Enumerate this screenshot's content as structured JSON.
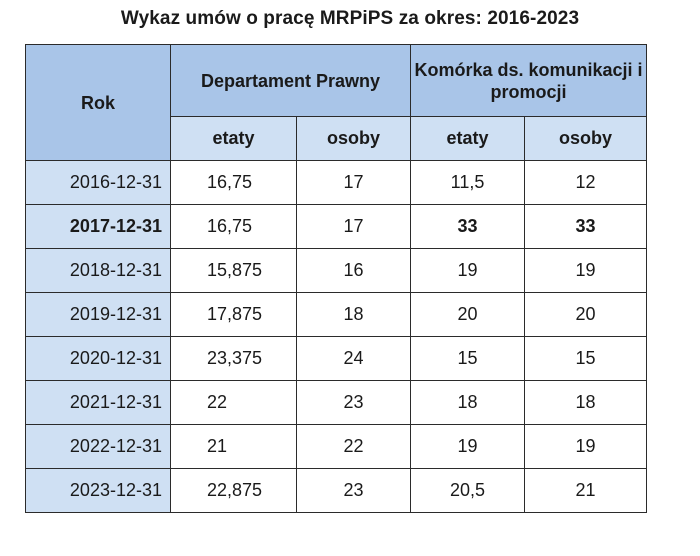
{
  "title": "Wykaz umów o pracę MRPiPS za okres: 2016-2023",
  "headers": {
    "year": "Rok",
    "group1": "Departament Prawny",
    "group2": "Komórka ds. komunikacji i promocji",
    "sub": [
      "etaty",
      "osoby",
      "etaty",
      "osoby"
    ]
  },
  "rows": [
    {
      "year": "2016-12-31",
      "dp_etaty": "16,75",
      "dp_osoby": "17",
      "kk_etaty": "11,5",
      "kk_osoby": "12"
    },
    {
      "year": "2017-12-31",
      "dp_etaty": "16,75",
      "dp_osoby": "17",
      "kk_etaty": "33",
      "kk_osoby": "33"
    },
    {
      "year": "2018-12-31",
      "dp_etaty": "15,875",
      "dp_osoby": "16",
      "kk_etaty": "19",
      "kk_osoby": "19"
    },
    {
      "year": "2019-12-31",
      "dp_etaty": "17,875",
      "dp_osoby": "18",
      "kk_etaty": "20",
      "kk_osoby": "20"
    },
    {
      "year": "2020-12-31",
      "dp_etaty": "23,375",
      "dp_osoby": "24",
      "kk_etaty": "15",
      "kk_osoby": "15"
    },
    {
      "year": "2021-12-31",
      "dp_etaty": "22",
      "dp_osoby": "23",
      "kk_etaty": "18",
      "kk_osoby": "18"
    },
    {
      "year": "2022-12-31",
      "dp_etaty": "21",
      "dp_osoby": "22",
      "kk_etaty": "19",
      "kk_osoby": "19"
    },
    {
      "year": "2023-12-31",
      "dp_etaty": "22,875",
      "dp_osoby": "23",
      "kk_etaty": "20,5",
      "kk_osoby": "21"
    }
  ],
  "colors": {
    "header": "#a9c5e8",
    "subheader": "#cfe0f3",
    "border": "#2b2b2b"
  }
}
